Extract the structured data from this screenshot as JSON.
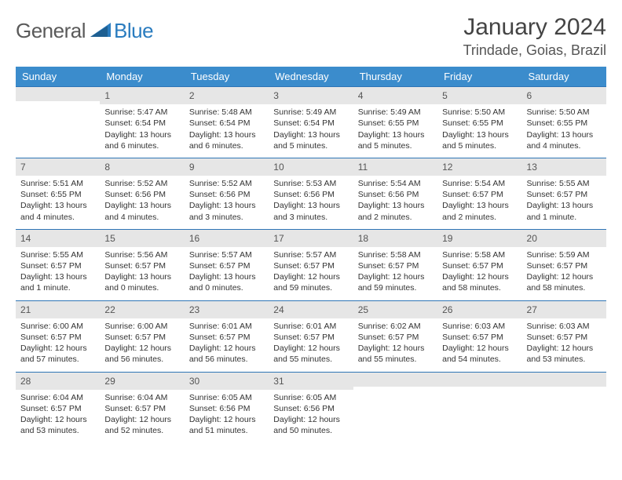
{
  "brand": {
    "part1": "General",
    "part2": "Blue"
  },
  "title": {
    "month": "January 2024",
    "location": "Trindade, Goias, Brazil"
  },
  "colors": {
    "header_bg": "#3b8ccc",
    "header_text": "#ffffff",
    "daynum_bg": "#e6e6e6",
    "row_border": "#2e75b6",
    "brand_gray": "#5a5a5a",
    "brand_blue": "#2a7cbf",
    "text": "#333333"
  },
  "weekdays": [
    "Sunday",
    "Monday",
    "Tuesday",
    "Wednesday",
    "Thursday",
    "Friday",
    "Saturday"
  ],
  "weeks": [
    [
      {
        "num": "",
        "lines": [
          "",
          "",
          "",
          ""
        ]
      },
      {
        "num": "1",
        "lines": [
          "Sunrise: 5:47 AM",
          "Sunset: 6:54 PM",
          "Daylight: 13 hours",
          "and 6 minutes."
        ]
      },
      {
        "num": "2",
        "lines": [
          "Sunrise: 5:48 AM",
          "Sunset: 6:54 PM",
          "Daylight: 13 hours",
          "and 6 minutes."
        ]
      },
      {
        "num": "3",
        "lines": [
          "Sunrise: 5:49 AM",
          "Sunset: 6:54 PM",
          "Daylight: 13 hours",
          "and 5 minutes."
        ]
      },
      {
        "num": "4",
        "lines": [
          "Sunrise: 5:49 AM",
          "Sunset: 6:55 PM",
          "Daylight: 13 hours",
          "and 5 minutes."
        ]
      },
      {
        "num": "5",
        "lines": [
          "Sunrise: 5:50 AM",
          "Sunset: 6:55 PM",
          "Daylight: 13 hours",
          "and 5 minutes."
        ]
      },
      {
        "num": "6",
        "lines": [
          "Sunrise: 5:50 AM",
          "Sunset: 6:55 PM",
          "Daylight: 13 hours",
          "and 4 minutes."
        ]
      }
    ],
    [
      {
        "num": "7",
        "lines": [
          "Sunrise: 5:51 AM",
          "Sunset: 6:55 PM",
          "Daylight: 13 hours",
          "and 4 minutes."
        ]
      },
      {
        "num": "8",
        "lines": [
          "Sunrise: 5:52 AM",
          "Sunset: 6:56 PM",
          "Daylight: 13 hours",
          "and 4 minutes."
        ]
      },
      {
        "num": "9",
        "lines": [
          "Sunrise: 5:52 AM",
          "Sunset: 6:56 PM",
          "Daylight: 13 hours",
          "and 3 minutes."
        ]
      },
      {
        "num": "10",
        "lines": [
          "Sunrise: 5:53 AM",
          "Sunset: 6:56 PM",
          "Daylight: 13 hours",
          "and 3 minutes."
        ]
      },
      {
        "num": "11",
        "lines": [
          "Sunrise: 5:54 AM",
          "Sunset: 6:56 PM",
          "Daylight: 13 hours",
          "and 2 minutes."
        ]
      },
      {
        "num": "12",
        "lines": [
          "Sunrise: 5:54 AM",
          "Sunset: 6:57 PM",
          "Daylight: 13 hours",
          "and 2 minutes."
        ]
      },
      {
        "num": "13",
        "lines": [
          "Sunrise: 5:55 AM",
          "Sunset: 6:57 PM",
          "Daylight: 13 hours",
          "and 1 minute."
        ]
      }
    ],
    [
      {
        "num": "14",
        "lines": [
          "Sunrise: 5:55 AM",
          "Sunset: 6:57 PM",
          "Daylight: 13 hours",
          "and 1 minute."
        ]
      },
      {
        "num": "15",
        "lines": [
          "Sunrise: 5:56 AM",
          "Sunset: 6:57 PM",
          "Daylight: 13 hours",
          "and 0 minutes."
        ]
      },
      {
        "num": "16",
        "lines": [
          "Sunrise: 5:57 AM",
          "Sunset: 6:57 PM",
          "Daylight: 13 hours",
          "and 0 minutes."
        ]
      },
      {
        "num": "17",
        "lines": [
          "Sunrise: 5:57 AM",
          "Sunset: 6:57 PM",
          "Daylight: 12 hours",
          "and 59 minutes."
        ]
      },
      {
        "num": "18",
        "lines": [
          "Sunrise: 5:58 AM",
          "Sunset: 6:57 PM",
          "Daylight: 12 hours",
          "and 59 minutes."
        ]
      },
      {
        "num": "19",
        "lines": [
          "Sunrise: 5:58 AM",
          "Sunset: 6:57 PM",
          "Daylight: 12 hours",
          "and 58 minutes."
        ]
      },
      {
        "num": "20",
        "lines": [
          "Sunrise: 5:59 AM",
          "Sunset: 6:57 PM",
          "Daylight: 12 hours",
          "and 58 minutes."
        ]
      }
    ],
    [
      {
        "num": "21",
        "lines": [
          "Sunrise: 6:00 AM",
          "Sunset: 6:57 PM",
          "Daylight: 12 hours",
          "and 57 minutes."
        ]
      },
      {
        "num": "22",
        "lines": [
          "Sunrise: 6:00 AM",
          "Sunset: 6:57 PM",
          "Daylight: 12 hours",
          "and 56 minutes."
        ]
      },
      {
        "num": "23",
        "lines": [
          "Sunrise: 6:01 AM",
          "Sunset: 6:57 PM",
          "Daylight: 12 hours",
          "and 56 minutes."
        ]
      },
      {
        "num": "24",
        "lines": [
          "Sunrise: 6:01 AM",
          "Sunset: 6:57 PM",
          "Daylight: 12 hours",
          "and 55 minutes."
        ]
      },
      {
        "num": "25",
        "lines": [
          "Sunrise: 6:02 AM",
          "Sunset: 6:57 PM",
          "Daylight: 12 hours",
          "and 55 minutes."
        ]
      },
      {
        "num": "26",
        "lines": [
          "Sunrise: 6:03 AM",
          "Sunset: 6:57 PM",
          "Daylight: 12 hours",
          "and 54 minutes."
        ]
      },
      {
        "num": "27",
        "lines": [
          "Sunrise: 6:03 AM",
          "Sunset: 6:57 PM",
          "Daylight: 12 hours",
          "and 53 minutes."
        ]
      }
    ],
    [
      {
        "num": "28",
        "lines": [
          "Sunrise: 6:04 AM",
          "Sunset: 6:57 PM",
          "Daylight: 12 hours",
          "and 53 minutes."
        ]
      },
      {
        "num": "29",
        "lines": [
          "Sunrise: 6:04 AM",
          "Sunset: 6:57 PM",
          "Daylight: 12 hours",
          "and 52 minutes."
        ]
      },
      {
        "num": "30",
        "lines": [
          "Sunrise: 6:05 AM",
          "Sunset: 6:56 PM",
          "Daylight: 12 hours",
          "and 51 minutes."
        ]
      },
      {
        "num": "31",
        "lines": [
          "Sunrise: 6:05 AM",
          "Sunset: 6:56 PM",
          "Daylight: 12 hours",
          "and 50 minutes."
        ]
      },
      {
        "num": "",
        "lines": [
          "",
          "",
          "",
          ""
        ]
      },
      {
        "num": "",
        "lines": [
          "",
          "",
          "",
          ""
        ]
      },
      {
        "num": "",
        "lines": [
          "",
          "",
          "",
          ""
        ]
      }
    ]
  ]
}
